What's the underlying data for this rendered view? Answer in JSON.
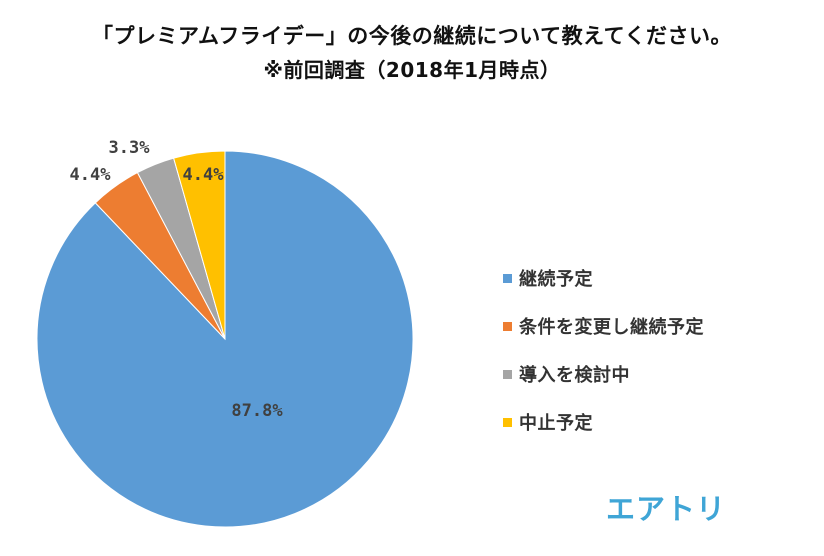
{
  "chart_data": {
    "type": "pie",
    "title": "「プレミアムフライデー」の今後の継続について教えてください。",
    "subtitle": "※前回調査（2018年1月時点）",
    "categories": [
      "継続予定",
      "条件を変更し継続予定",
      "導入を検討中",
      "中止予定"
    ],
    "values": [
      87.8,
      4.4,
      3.3,
      4.4
    ],
    "data_labels": [
      "87.8%",
      "4.4%",
      "3.3%",
      "4.4%"
    ],
    "colors": [
      "#5B9BD5",
      "#ED7D31",
      "#A5A5A5",
      "#FFC000"
    ],
    "start_angle_deg": 0,
    "direction": "clockwise",
    "legend_position": "right"
  },
  "logo": {
    "text": "エアトリ",
    "color": "#3FA5D6"
  }
}
